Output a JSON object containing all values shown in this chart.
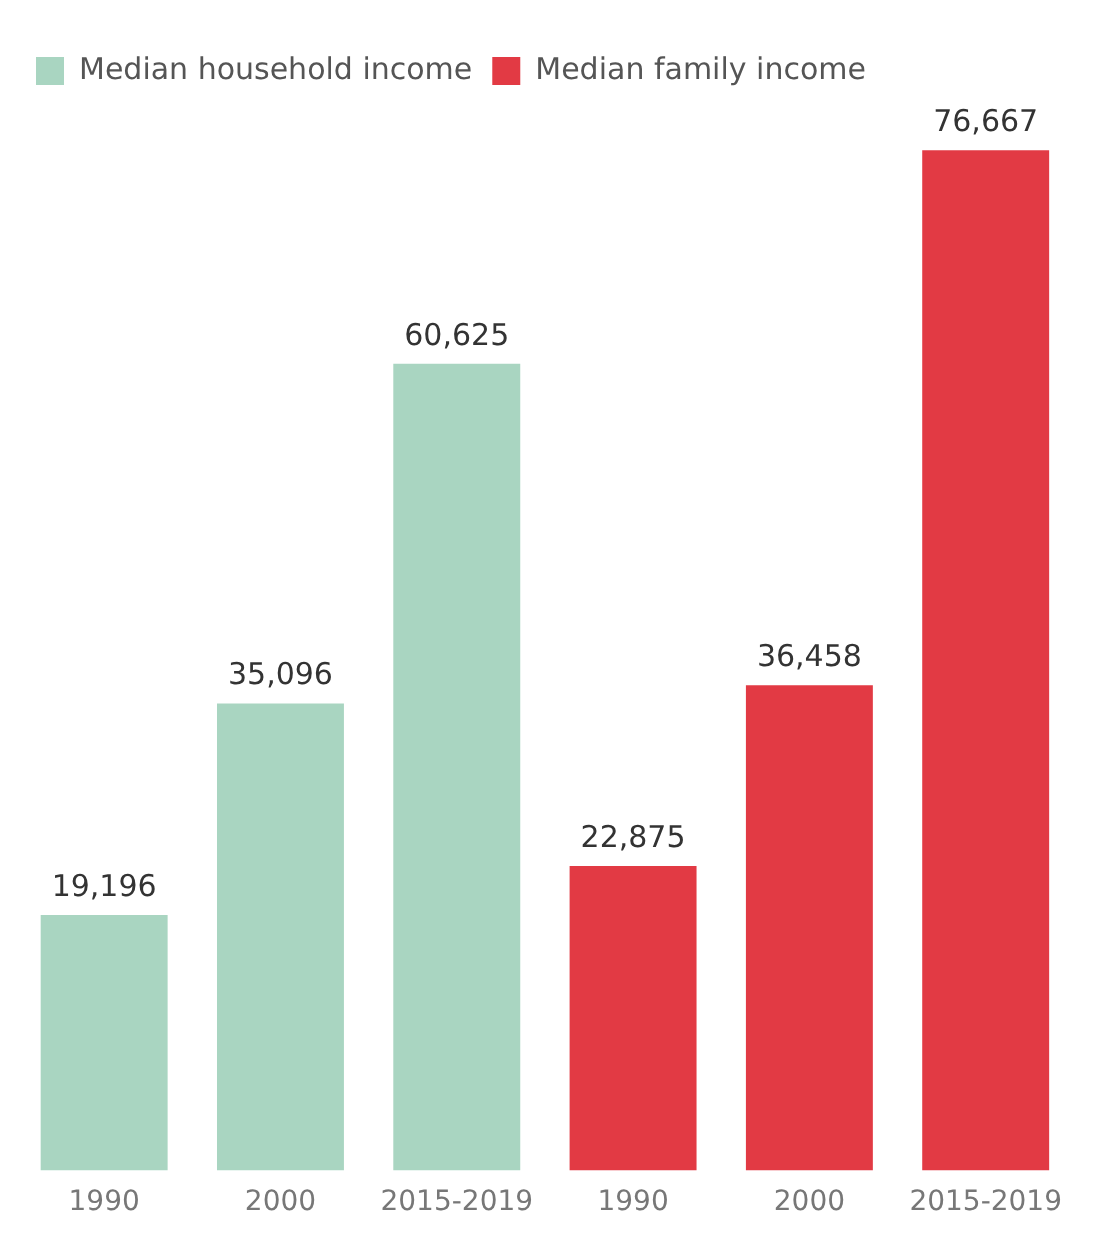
{
  "chart_data": {
    "type": "bar",
    "categories": [
      "1990",
      "2000",
      "2015-2019",
      "1990",
      "2000",
      "2015-2019"
    ],
    "series": [
      {
        "name": "Median household income",
        "color": "#a9d5c1",
        "values": [
          19196,
          35096,
          60625,
          null,
          null,
          null
        ],
        "value_labels": [
          "19,196",
          "35,096",
          "60,625",
          null,
          null,
          null
        ]
      },
      {
        "name": "Median family income",
        "color": "#e23a44",
        "values": [
          null,
          null,
          null,
          22875,
          36458,
          76667
        ],
        "value_labels": [
          null,
          null,
          null,
          "22,875",
          "36,458",
          "76,667"
        ]
      }
    ],
    "legend": "top left",
    "grid": false
  }
}
